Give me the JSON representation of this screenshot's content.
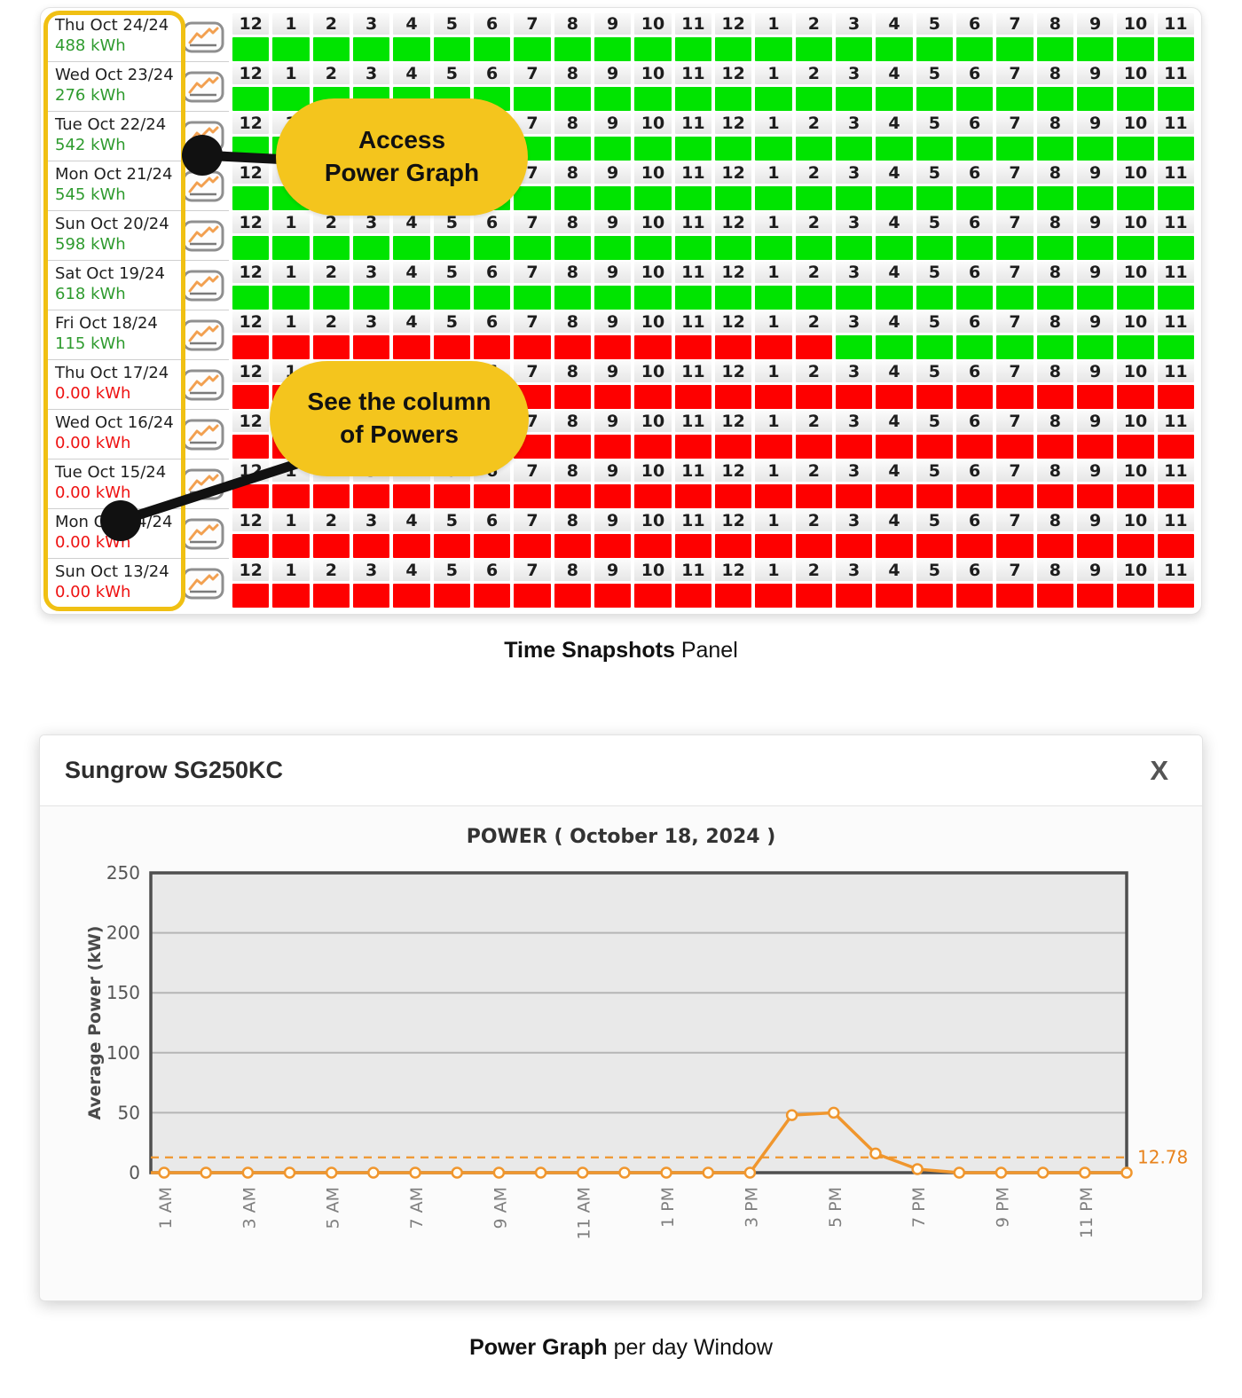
{
  "snapshot_panel": {
    "hour_labels": [
      "12",
      "1",
      "2",
      "3",
      "4",
      "5",
      "6",
      "7",
      "8",
      "9",
      "10",
      "11",
      "12",
      "1",
      "2",
      "3",
      "4",
      "5",
      "6",
      "7",
      "8",
      "9",
      "10",
      "11"
    ],
    "rows": [
      {
        "date": "Thu Oct 24/24",
        "energy": "488 kWh",
        "state": "ok",
        "cells": "GGGGGGGGGGGGGGGGGGGGGGGG"
      },
      {
        "date": "Wed Oct 23/24",
        "energy": "276 kWh",
        "state": "ok",
        "cells": "GGGGGGGGGGGGGGGGGGGGGGGG"
      },
      {
        "date": "Tue Oct 22/24",
        "energy": "542 kWh",
        "state": "ok",
        "cells": "GGGGGGGGGGGGGGGGGGGGGGGG"
      },
      {
        "date": "Mon Oct 21/24",
        "energy": "545 kWh",
        "state": "ok",
        "cells": "GGGGGGGGGGGGGGGGGGGGGGGG"
      },
      {
        "date": "Sun Oct 20/24",
        "energy": "598 kWh",
        "state": "ok",
        "cells": "GGGGGGGGGGGGGGGGGGGGGGGG"
      },
      {
        "date": "Sat Oct 19/24",
        "energy": "618 kWh",
        "state": "ok",
        "cells": "GGGGGGGGGGGGGGGGGGGGGGGG"
      },
      {
        "date": "Fri Oct 18/24",
        "energy": "115 kWh",
        "state": "ok",
        "cells": "RRRRRRRRRRRRRRRGGGGGGGGG"
      },
      {
        "date": "Thu Oct 17/24",
        "energy": "0.00 kWh",
        "state": "zero",
        "cells": "RRRRRRRRRRRRRRRRRRRRRRRR"
      },
      {
        "date": "Wed Oct 16/24",
        "energy": "0.00 kWh",
        "state": "zero",
        "cells": "RRRRRRRRRRRRRRRRRRRRRRRR"
      },
      {
        "date": "Tue Oct 15/24",
        "energy": "0.00 kWh",
        "state": "zero",
        "cells": "RRRRRRRRRRRRRRRRRRRRRRRR"
      },
      {
        "date": "Mon Oct 14/24",
        "energy": "0.00 kWh",
        "state": "zero",
        "cells": "RRRRRRRRRRRRRRRRRRRRRRRR"
      },
      {
        "date": "Sun Oct 13/24",
        "energy": "0.00 kWh",
        "state": "zero",
        "cells": "RRRRRRRRRRRRRRRRRRRRRRRR"
      }
    ],
    "graph_button_icon": "line-chart-icon",
    "colors": {
      "cell_on": "#00e400",
      "cell_off": "#fe0000",
      "energy_ok": "#2e9b2e",
      "energy_zero": "#ee1111",
      "highlight": "#f0c013",
      "callout": "#f4c51d"
    }
  },
  "callouts": [
    {
      "lines": [
        "Access",
        "Power Graph"
      ]
    },
    {
      "lines": [
        "See the column",
        "of Powers"
      ]
    }
  ],
  "captions": [
    {
      "bold": "Time Snapshots",
      "rest": " Panel"
    },
    {
      "bold": "Power Graph",
      "rest": " per day Window"
    }
  ],
  "power_window": {
    "title": "Sungrow SG250KC",
    "close_label": "X"
  },
  "chart_data": {
    "type": "line",
    "title": "POWER ( October 18, 2024 )",
    "xlabel": "",
    "ylabel": "Average Power (kW)",
    "ylim": [
      0,
      250
    ],
    "yticks": [
      0,
      50,
      100,
      150,
      200,
      250
    ],
    "x": [
      "1 AM",
      "2 AM",
      "3 AM",
      "4 AM",
      "5 AM",
      "6 AM",
      "7 AM",
      "8 AM",
      "9 AM",
      "10 AM",
      "11 AM",
      "12 PM",
      "1 PM",
      "2 PM",
      "3 PM",
      "4 PM",
      "5 PM",
      "6 PM",
      "7 PM",
      "8 PM",
      "9 PM",
      "10 PM",
      "11 PM",
      "12 AM"
    ],
    "x_tick_every": 2,
    "values": [
      0,
      0,
      0,
      0,
      0,
      0,
      0,
      0,
      0,
      0,
      0,
      0,
      0,
      0,
      0,
      48,
      50,
      16,
      3,
      0,
      0,
      0,
      0,
      0
    ],
    "average_line": {
      "value": 12.78,
      "label": "12.78"
    },
    "line_color": "#f0962d",
    "avg_label_color": "#e8831d",
    "grid": true,
    "legend_position": "none"
  }
}
